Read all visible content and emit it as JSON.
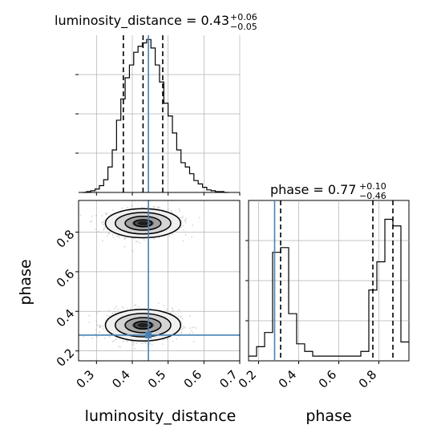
{
  "chart_data": {
    "type": "corner",
    "parameters": [
      "luminosity_distance",
      "phase"
    ],
    "truth": {
      "luminosity_distance": 0.445,
      "phase": 0.28
    },
    "hist_luminosity_distance": {
      "title": "luminosity_distance = 0.43",
      "title_main": "luminosity_distance = 0.43",
      "title_sup": "+0.06",
      "title_sub": "−0.05",
      "quantiles": [
        0.375,
        0.43,
        0.485
      ],
      "xlim": [
        0.25,
        0.7
      ],
      "bin_edges": [
        0.26,
        0.272,
        0.284,
        0.296,
        0.308,
        0.32,
        0.332,
        0.344,
        0.356,
        0.368,
        0.38,
        0.392,
        0.404,
        0.416,
        0.428,
        0.44,
        0.452,
        0.464,
        0.476,
        0.488,
        0.5,
        0.512,
        0.524,
        0.536,
        0.548,
        0.56,
        0.572,
        0.584,
        0.596,
        0.608,
        0.62,
        0.632,
        0.644,
        0.656,
        0.668
      ],
      "counts": [
        0,
        1,
        2,
        4,
        8,
        15,
        30,
        50,
        85,
        110,
        135,
        150,
        165,
        172,
        176,
        180,
        170,
        150,
        130,
        105,
        90,
        70,
        50,
        35,
        30,
        22,
        14,
        10,
        6,
        3,
        2,
        1,
        1,
        0
      ],
      "ymax": 185
    },
    "hist_phase": {
      "title": "phase = 0.77",
      "title_main": "phase = 0.77",
      "title_sup": "+0.10",
      "title_sub": "−0.46",
      "quantiles": [
        0.31,
        0.77,
        0.87
      ],
      "xlim": [
        0.15,
        0.95
      ],
      "bin_edges": [
        0.15,
        0.19,
        0.23,
        0.27,
        0.31,
        0.35,
        0.39,
        0.43,
        0.47,
        0.51,
        0.55,
        0.59,
        0.63,
        0.67,
        0.71,
        0.75,
        0.79,
        0.83,
        0.87,
        0.91,
        0.95
      ],
      "counts": [
        5,
        15,
        30,
        115,
        120,
        50,
        18,
        10,
        5,
        5,
        5,
        5,
        5,
        5,
        10,
        75,
        105,
        150,
        143,
        20
      ],
      "ymax": 170
    },
    "scatter_2d": {
      "x_param": "luminosity_distance",
      "y_param": "phase",
      "xlim": [
        0.25,
        0.7
      ],
      "ylim": [
        0.15,
        0.96
      ],
      "modes": [
        {
          "x_center": 0.43,
          "y_center": 0.845,
          "x_sigma": 0.05,
          "y_sigma": 0.035,
          "weight": 0.5
        },
        {
          "x_center": 0.43,
          "y_center": 0.33,
          "x_sigma": 0.05,
          "y_sigma": 0.038,
          "weight": 0.5
        }
      ]
    },
    "x_ticks_lum": [
      0.3,
      0.4,
      0.5,
      0.6,
      0.7
    ],
    "x_tick_labels_lum": [
      "0.3",
      "0.4",
      "0.5",
      "0.6",
      "0.7"
    ],
    "y_ticks_phase": [
      0.2,
      0.4,
      0.6,
      0.8
    ],
    "y_tick_labels_phase": [
      "0.2",
      "0.4",
      "0.6",
      "0.8"
    ],
    "x_ticks_phase": [
      0.2,
      0.4,
      0.6,
      0.8
    ],
    "x_tick_labels_phase": [
      "0.2",
      "0.4",
      "0.6",
      "0.8"
    ],
    "xlabel_left": "luminosity_distance",
    "xlabel_right": "phase",
    "ylabel_bottom": "phase",
    "grid": true,
    "colors": {
      "truth": "#4682b4",
      "hist": "#000000",
      "grid": "#b0b0b0",
      "points": "#888888"
    }
  }
}
